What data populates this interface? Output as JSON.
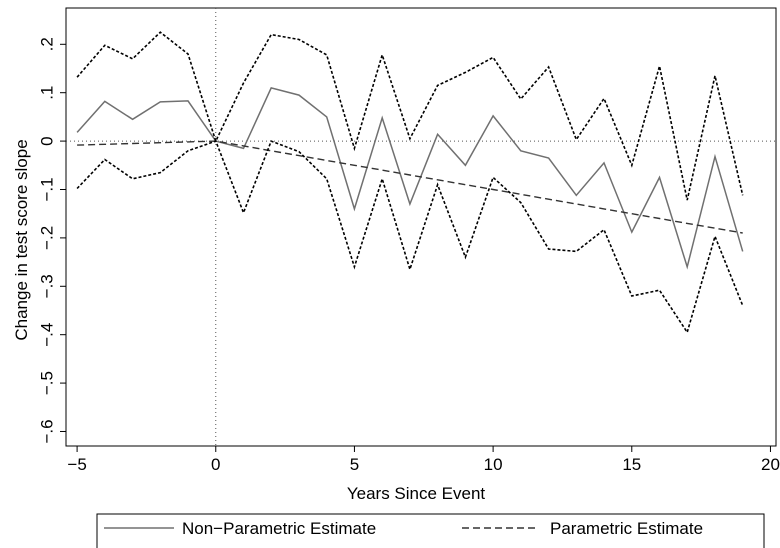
{
  "chart_data": {
    "type": "line",
    "title": "",
    "xlabel": "Years Since Event",
    "ylabel": "Change in test score slope",
    "xlim": [
      -5.4,
      20.2
    ],
    "ylim": [
      -0.63,
      0.275
    ],
    "x_ticks": [
      {
        "value": -5,
        "label": "−5"
      },
      {
        "value": 0,
        "label": "0"
      },
      {
        "value": 5,
        "label": "5"
      },
      {
        "value": 10,
        "label": "10"
      },
      {
        "value": 15,
        "label": "15"
      },
      {
        "value": 20,
        "label": "20"
      }
    ],
    "y_ticks": [
      {
        "value": 0.2,
        "label": ".2"
      },
      {
        "value": 0.1,
        "label": ".1"
      },
      {
        "value": 0,
        "label": "0"
      },
      {
        "value": -0.1,
        "label": "−.1"
      },
      {
        "value": -0.2,
        "label": "−.2"
      },
      {
        "value": -0.3,
        "label": "−.3"
      },
      {
        "value": -0.4,
        "label": "−.4"
      },
      {
        "value": -0.5,
        "label": "−.5"
      },
      {
        "value": -0.6,
        "label": "−.6"
      }
    ],
    "reference_lines": {
      "x": 0,
      "y": 0,
      "style": "dotted"
    },
    "grid": false,
    "legend_position": "bottom",
    "x": [
      -5,
      -4,
      -3,
      -2,
      -1,
      0,
      1,
      2,
      3,
      4,
      5,
      6,
      7,
      8,
      9,
      10,
      11,
      12,
      13,
      14,
      15,
      16,
      17,
      18,
      19
    ],
    "series": [
      {
        "name": "Non−Parametric Estimate",
        "style": "solid",
        "color": "#707070",
        "values": [
          0.018,
          0.082,
          0.045,
          0.081,
          0.083,
          0.0,
          -0.015,
          0.11,
          0.095,
          0.05,
          -0.14,
          0.048,
          -0.13,
          0.014,
          -0.05,
          0.052,
          -0.02,
          -0.035,
          -0.112,
          -0.045,
          -0.188,
          -0.075,
          -0.26,
          -0.032,
          -0.228
        ]
      },
      {
        "name": "Parametric Estimate",
        "style": "dashed",
        "color": "#333333",
        "values": [
          -0.0083,
          -0.0067,
          -0.005,
          -0.0033,
          -0.0017,
          0.0,
          -0.01,
          -0.02,
          -0.03,
          -0.04,
          -0.05,
          -0.06,
          -0.07,
          -0.08,
          -0.09,
          -0.1,
          -0.11,
          -0.12,
          -0.13,
          -0.14,
          -0.15,
          -0.16,
          -0.17,
          -0.18,
          -0.19
        ]
      },
      {
        "name": "",
        "style": "dotted-dense",
        "color": "#000000",
        "values": [
          0.132,
          0.198,
          0.17,
          0.225,
          0.18,
          0.0,
          0.12,
          0.22,
          0.21,
          0.178,
          -0.015,
          0.178,
          0.005,
          0.115,
          0.142,
          0.173,
          0.087,
          0.153,
          0.003,
          0.088,
          -0.05,
          0.155,
          -0.122,
          0.135,
          -0.112
        ]
      },
      {
        "name": "",
        "style": "dotted-dense",
        "color": "#000000",
        "values": [
          -0.098,
          -0.038,
          -0.078,
          -0.065,
          -0.02,
          0.0,
          -0.148,
          0.0,
          -0.022,
          -0.078,
          -0.26,
          -0.078,
          -0.265,
          -0.09,
          -0.24,
          -0.075,
          -0.127,
          -0.223,
          -0.228,
          -0.183,
          -0.32,
          -0.308,
          -0.395,
          -0.197,
          -0.34
        ]
      }
    ],
    "legend": [
      {
        "label": "Non−Parametric Estimate",
        "style": "solid"
      },
      {
        "label": "Parametric Estimate",
        "style": "dashed"
      }
    ]
  }
}
